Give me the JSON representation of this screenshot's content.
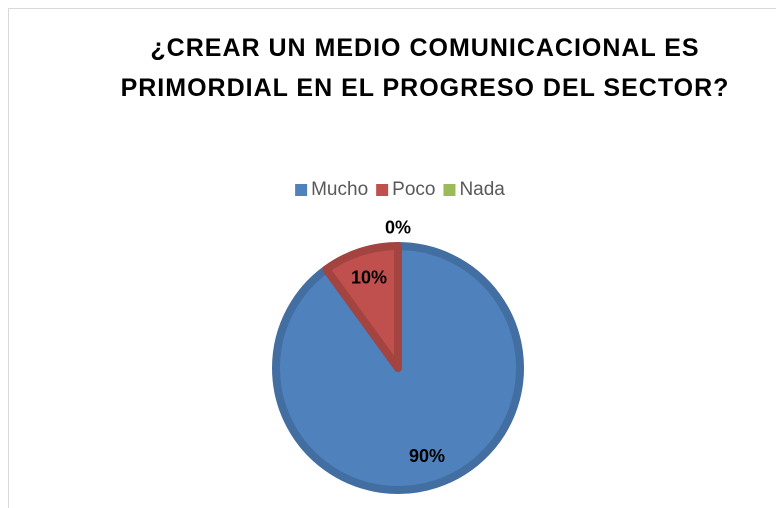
{
  "chart_data": {
    "type": "pie",
    "title": "¿CREAR UN MEDIO COMUNICACIONAL ES PRIMORDIAL EN EL PROGRESO DEL SECTOR?",
    "categories": [
      "Mucho",
      "Poco",
      "Nada"
    ],
    "values": [
      90,
      10,
      0
    ],
    "value_labels": [
      "90%",
      "10%",
      "0%"
    ],
    "colors": [
      "#4f81bd",
      "#c0504d",
      "#9bbb59"
    ],
    "legend": "top"
  }
}
